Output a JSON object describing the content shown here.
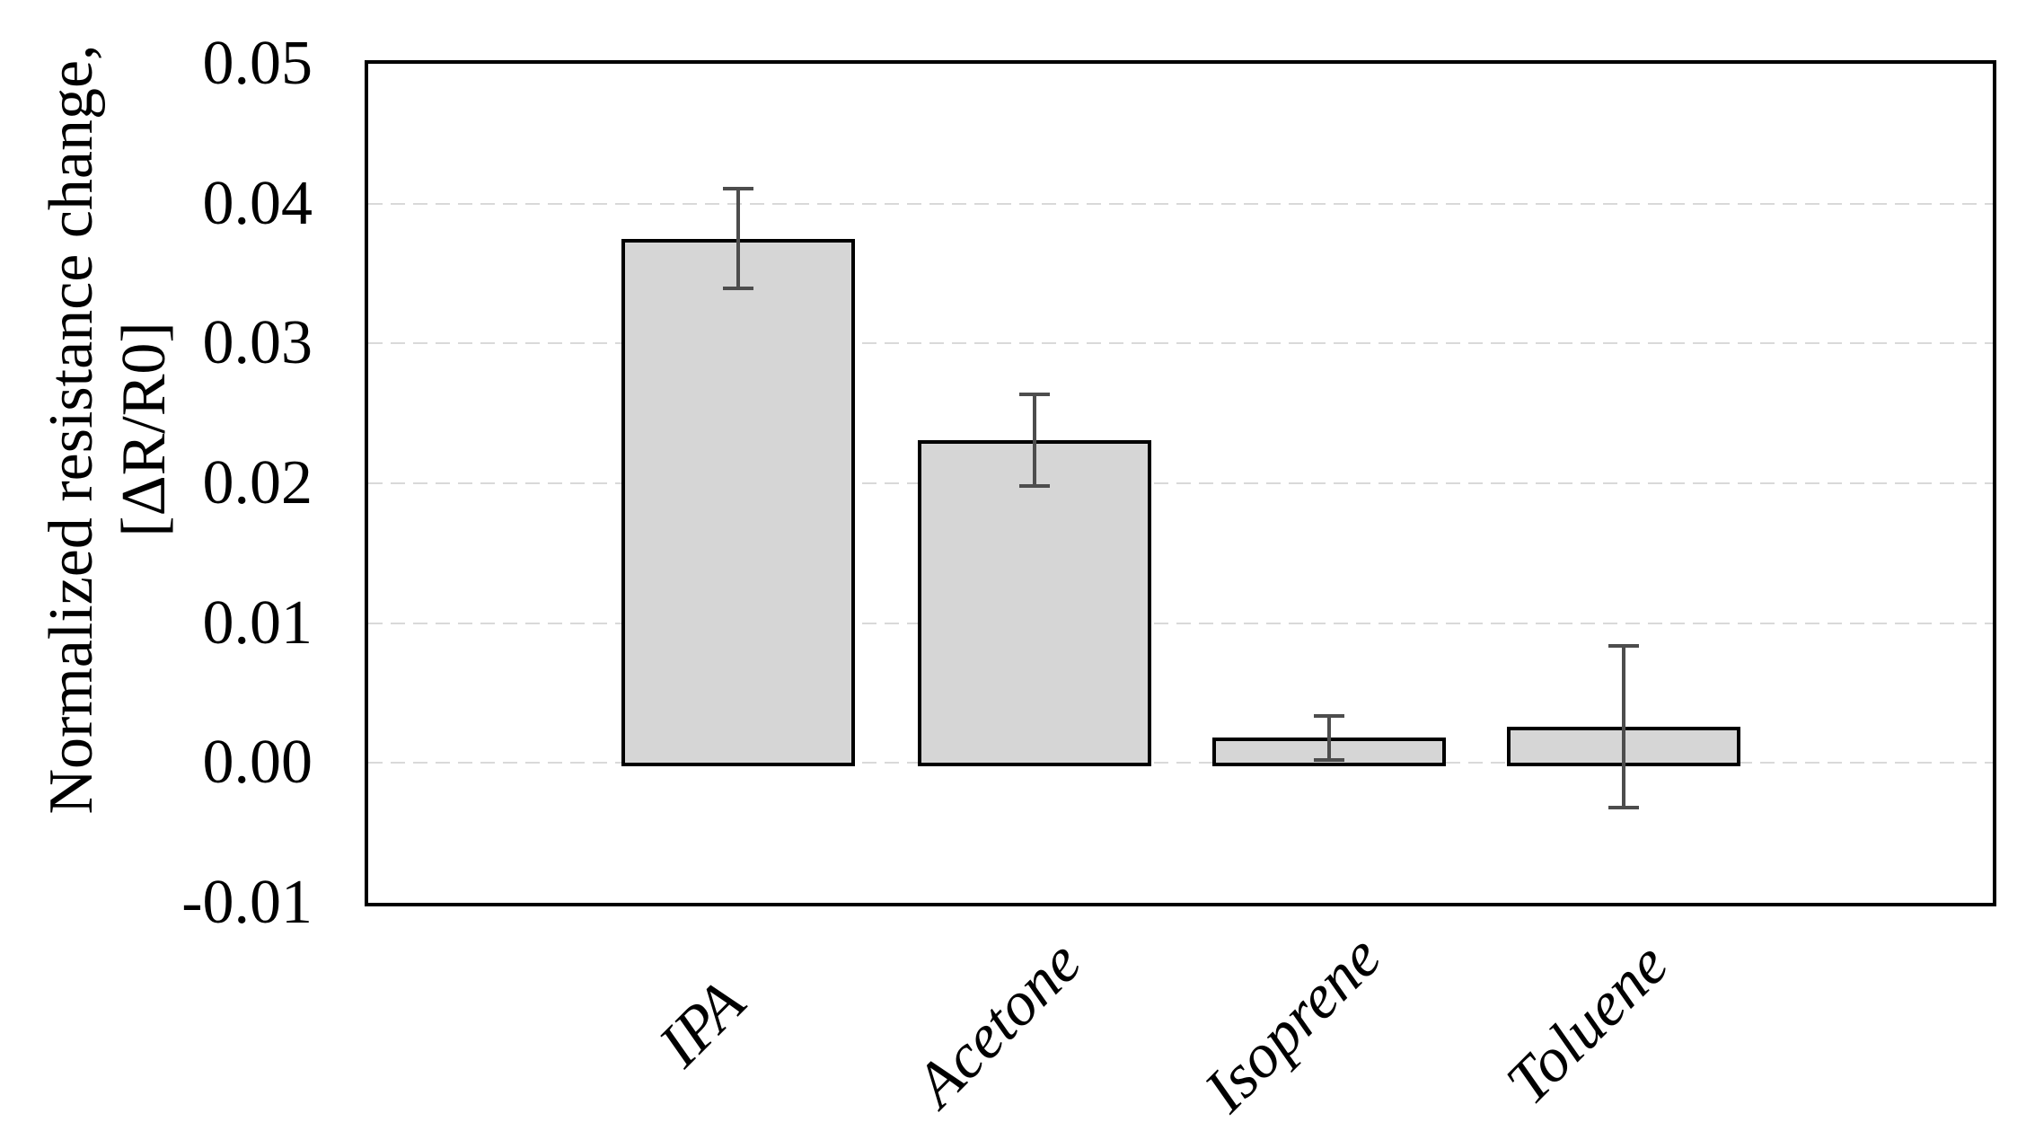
{
  "chart_data": {
    "type": "bar",
    "title": "",
    "categories": [
      "IPA",
      "Acetone",
      "Isoprene",
      "Toluene"
    ],
    "values": [
      0.0375,
      0.0231,
      0.0018,
      0.0026
    ],
    "error_bars": [
      0.0037,
      0.0034,
      0.0017,
      0.0059
    ],
    "ylabel_line1": "Normalized resistance change,",
    "ylabel_line2": "[ΔR/R0]",
    "xlabel": "",
    "ylim": [
      -0.01,
      0.05
    ],
    "ytick_step": 0.01,
    "ytick_labels": [
      "0.05",
      "0.04",
      "0.03",
      "0.02",
      "0.01",
      "0.00",
      "-0.01"
    ],
    "grid": "horizontal-dashed",
    "legend": "none",
    "colors": {
      "bar_fill": "#d6d6d6",
      "bar_border": "#000000",
      "error_bar": "#4d4d4d",
      "gridline": "#d9d9d9",
      "plot_border": "#000000",
      "background": "#ffffff",
      "text": "#000000"
    }
  }
}
